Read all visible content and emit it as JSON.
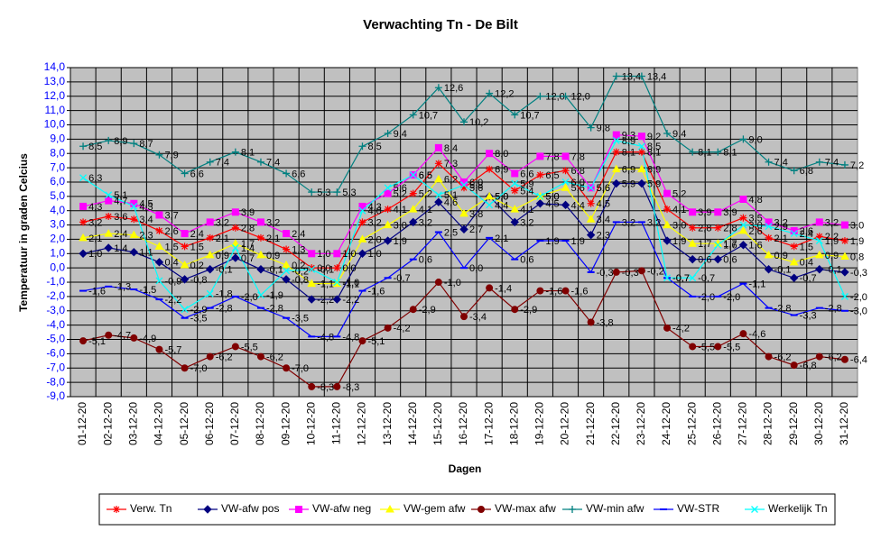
{
  "chart_data": {
    "type": "line",
    "title": "Verwachting Tn - De Bilt",
    "xlabel": "Dagen",
    "ylabel": "Temperatuur in graden Celcius",
    "grid": true,
    "legend_position": "bottom",
    "categories": [
      "01-12-20",
      "02-12-20",
      "03-12-20",
      "04-12-20",
      "05-12-20",
      "06-12-20",
      "07-12-20",
      "08-12-20",
      "09-12-20",
      "10-12-20",
      "11-12-20",
      "12-12-20",
      "13-12-20",
      "14-12-20",
      "15-12-20",
      "16-12-20",
      "17-12-20",
      "18-12-20",
      "19-12-20",
      "20-12-20",
      "21-12-20",
      "22-12-20",
      "23-12-20",
      "24-12-20",
      "25-12-20",
      "26-12-20",
      "27-12-20",
      "28-12-20",
      "29-12-20",
      "30-12-20",
      "31-12-20"
    ],
    "ylim": [
      -9,
      14
    ],
    "yticks": [
      {
        "value": -9,
        "label": "-9,0"
      },
      {
        "value": -8,
        "label": "-8,0"
      },
      {
        "value": -7,
        "label": "-7,0"
      },
      {
        "value": -6,
        "label": "-6,0"
      },
      {
        "value": -5,
        "label": "-5,0"
      },
      {
        "value": -4,
        "label": "-4,0"
      },
      {
        "value": -3,
        "label": "-3,0"
      },
      {
        "value": -2,
        "label": "-2,0"
      },
      {
        "value": -1,
        "label": "-1,0"
      },
      {
        "value": 0,
        "label": "0,0"
      },
      {
        "value": 1,
        "label": "1,0"
      },
      {
        "value": 2,
        "label": "2,0"
      },
      {
        "value": 3,
        "label": "3,0"
      },
      {
        "value": 4,
        "label": "4,0"
      },
      {
        "value": 5,
        "label": "5,0"
      },
      {
        "value": 6,
        "label": "6,0"
      },
      {
        "value": 7,
        "label": "7,0"
      },
      {
        "value": 8,
        "label": "8,0"
      },
      {
        "value": 9,
        "label": "9,0"
      },
      {
        "value": 10,
        "label": "10,0"
      },
      {
        "value": 11,
        "label": "11,0"
      },
      {
        "value": 12,
        "label": "12,0"
      },
      {
        "value": 13,
        "label": "13,0"
      },
      {
        "value": 14,
        "label": "14,0"
      }
    ],
    "series": [
      {
        "name": "Verw. Tn",
        "color": "#ff0000",
        "marker": "star",
        "values": [
          3.2,
          3.6,
          3.4,
          2.6,
          1.5,
          2.1,
          2.8,
          2.1,
          1.3,
          0.0,
          0.0,
          3.2,
          4.1,
          5.2,
          7.3,
          5.6,
          6.9,
          5.4,
          6.5,
          6.8,
          4.5,
          8.1,
          8.1,
          4.1,
          2.8,
          2.8,
          3.5,
          2.1,
          1.5,
          2.2,
          1.9
        ],
        "value_labels": [
          "3,2",
          "3,6",
          "3,4",
          "2,6",
          "1,5",
          "2,1",
          "2,8",
          "2,1",
          "1,3",
          "0,0",
          "0,0",
          "3,2",
          "4,1",
          "5,2",
          "7,3",
          "5,6",
          "6,9",
          "5,4",
          "6,5",
          "6,8",
          "4,5",
          "8,1",
          "8,1",
          "4,1",
          "2,8",
          "2,8",
          "3,5",
          "2,1",
          "1,5",
          "2,2",
          "1,9"
        ]
      },
      {
        "name": "VW-afw pos",
        "color": "#000080",
        "marker": "diamond",
        "values": [
          1.0,
          1.4,
          1.1,
          0.4,
          -0.8,
          -0.1,
          0.7,
          -0.1,
          -0.8,
          -2.2,
          -2.2,
          1.0,
          1.9,
          3.2,
          4.6,
          2.7,
          5.0,
          3.2,
          4.5,
          4.4,
          2.3,
          5.9,
          5.9,
          1.9,
          0.6,
          0.6,
          1.6,
          -0.1,
          -0.7,
          -0.1,
          -0.3
        ],
        "value_labels": [
          "1,0",
          "1,4",
          "1,1",
          "0,4",
          "-0,8",
          "-0,1",
          "0,7",
          "-0,1",
          "-0,8",
          "-2,2",
          "-2,2",
          "1,0",
          "1,9",
          "3,2",
          "4,6",
          "2,7",
          "5,0",
          "3,2",
          "4,5",
          "4,4",
          "2,3",
          "5,9",
          "5,9",
          "1,9",
          "0,6",
          "0,6",
          "1,6",
          "-0,1",
          "-0,7",
          "-0,1",
          "-0,3"
        ]
      },
      {
        "name": "VW-afw neg",
        "color": "#ff00ff",
        "marker": "square",
        "values": [
          4.3,
          4.7,
          4.5,
          3.7,
          2.4,
          3.2,
          3.9,
          3.2,
          2.4,
          1.0,
          1.0,
          4.3,
          5.2,
          6.5,
          8.4,
          6.0,
          8.0,
          6.6,
          7.8,
          7.8,
          5.6,
          9.3,
          9.2,
          5.2,
          3.9,
          3.9,
          4.8,
          3.2,
          2.6,
          3.2,
          3.0
        ],
        "value_labels": [
          "4,3",
          "4,7",
          "4,5",
          "3,7",
          "2,4",
          "3,2",
          "3,9",
          "3,2",
          "2,4",
          "1,0",
          "1,0",
          "4,3",
          "5,2",
          "6,5",
          "8,4",
          "6,0",
          "8,0",
          "6,6",
          "7,8",
          "7,8",
          "5,6",
          "9,3",
          "9,2",
          "5,2",
          "3,9",
          "3,9",
          "4,8",
          "3,2",
          "2,6",
          "3,2",
          "3,0"
        ]
      },
      {
        "name": "VW-gem afw",
        "color": "#ffff00",
        "marker": "triangle",
        "values": [
          2.1,
          2.4,
          2.3,
          1.5,
          0.2,
          0.9,
          1.7,
          0.9,
          0.2,
          -1.1,
          -1.1,
          2.0,
          3.0,
          4.1,
          6.2,
          3.8,
          5.0,
          4.1,
          5.0,
          5.6,
          3.4,
          6.9,
          6.9,
          3.0,
          1.7,
          1.7,
          2.6,
          0.9,
          0.4,
          0.9,
          0.8
        ],
        "value_labels": [
          "2,1",
          "2,4",
          "2,3",
          "1,5",
          "0,2",
          "0,9",
          "1,7",
          "0,9",
          "0,2",
          "-1,1",
          "-1,1",
          "2,0",
          "3,0",
          "4,1",
          "6,2",
          "3,8",
          "5,0",
          "4,1",
          "5,0",
          "5,6",
          "3,4",
          "6,9",
          "6,9",
          "3,0",
          "1,7",
          "1,7",
          "2,6",
          "0,9",
          "0,4",
          "0,9",
          "0,8"
        ]
      },
      {
        "name": "VW-max afw",
        "color": "#800000",
        "marker": "circle",
        "values": [
          -5.1,
          -4.7,
          -4.9,
          -5.7,
          -7.0,
          -6.2,
          -5.5,
          -6.2,
          -7.0,
          -8.3,
          -8.3,
          -5.1,
          -4.2,
          -2.9,
          -1.0,
          -3.4,
          -1.4,
          -2.9,
          -1.6,
          -1.6,
          -3.8,
          -0.3,
          -0.2,
          -4.2,
          -5.5,
          -5.5,
          -4.6,
          -6.2,
          -6.8,
          -6.2,
          -6.4
        ],
        "value_labels": [
          "-5,1",
          "-4,7",
          "-4,9",
          "-5,7",
          "-7,0",
          "-6,2",
          "-5,5",
          "-6,2",
          "-7,0",
          "-8,3",
          "-8,3",
          "-5,1",
          "-4,2",
          "-2,9",
          "-1,0",
          "-3,4",
          "-1,4",
          "-2,9",
          "-1,6",
          "-1,6",
          "-3,8",
          "-0,3",
          "-0,2",
          "-4,2",
          "-5,5",
          "-5,5",
          "-4,6",
          "-6,2",
          "-6,8",
          "-6,2",
          "-6,4"
        ]
      },
      {
        "name": "VW-min afw",
        "color": "#008080",
        "marker": "plus",
        "values": [
          8.5,
          8.9,
          8.7,
          7.9,
          6.6,
          7.4,
          8.1,
          7.4,
          6.6,
          5.3,
          5.3,
          8.5,
          9.4,
          10.7,
          12.6,
          10.2,
          12.2,
          10.7,
          12.0,
          12.0,
          9.8,
          13.4,
          13.4,
          9.4,
          8.1,
          8.1,
          9.0,
          7.4,
          6.8,
          7.4,
          7.2
        ],
        "value_labels": [
          "8,5",
          "8,9",
          "8,7",
          "7,9",
          "6,6",
          "7,4",
          "8,1",
          "7,4",
          "6,6",
          "5,3",
          "5,3",
          "8,5",
          "9,4",
          "10,7",
          "12,6",
          "10,2",
          "12,2",
          "10,7",
          "12,0",
          "12,0",
          "9,8",
          "13,4",
          "13,4",
          "9,4",
          "8,1",
          "8,1",
          "9,0",
          "7,4",
          "6,8",
          "7,4",
          "7,2"
        ]
      },
      {
        "name": "VW-STR",
        "color": "#0000ff",
        "marker": "dash",
        "values": [
          -1.6,
          -1.3,
          -1.5,
          -2.2,
          -3.5,
          -2.8,
          -2.0,
          -2.8,
          -3.5,
          -4.8,
          -4.8,
          -1.6,
          -0.7,
          0.6,
          2.5,
          0.0,
          2.1,
          0.6,
          1.9,
          1.9,
          -0.3,
          3.2,
          3.2,
          -0.7,
          -2.0,
          -2.0,
          -1.1,
          -2.8,
          -3.3,
          -2.8,
          -3.0
        ],
        "value_labels": [
          "-1,6",
          "-1,3",
          "-1,5",
          "-2,2",
          "-3,5",
          "-2,8",
          "-2,0",
          "-2,8",
          "-3,5",
          "-4,8",
          "-4,8",
          "-1,6",
          "-0,7",
          "0,6",
          "2,5",
          "0,0",
          "2,1",
          "0,6",
          "1,9",
          "1,9",
          "-0,3",
          "3,2",
          "3,2",
          "-0,7",
          "-2,0",
          "-2,0",
          "-1,1",
          "-2,8",
          "-3,3",
          "-2,8",
          "-3,0"
        ]
      },
      {
        "name": "Werkelijk Tn",
        "color": "#00ffff",
        "marker": "x",
        "values": [
          6.3,
          5.1,
          4.3,
          -0.9,
          -2.9,
          -1.8,
          1.4,
          -1.9,
          -0.2,
          -0.1,
          -1.0,
          4.0,
          5.6,
          6.5,
          5.1,
          5.8,
          4.4,
          5.9,
          5.0,
          6.0,
          5.6,
          8.9,
          8.5,
          -0.7,
          -0.7,
          1.6,
          3.0,
          2.9,
          2.4,
          1.9,
          -2.0
        ],
        "value_labels": [
          "6,3",
          "5,1",
          "4,3",
          "-0,9",
          "-2,9",
          "-1,8",
          "1,4",
          "-1,9",
          "-0,2",
          "-0,1",
          "-1,0",
          "4,0",
          "5,6",
          "6,5",
          "5,1",
          "5,8",
          "4,4",
          "5,9",
          "5,0",
          "6,0",
          "5,6",
          "8,9",
          "8,5",
          "-0,7",
          "-0,7",
          "1,6",
          "3,0",
          "2,9",
          "2,4",
          "1,9",
          "-2,0"
        ]
      }
    ]
  }
}
